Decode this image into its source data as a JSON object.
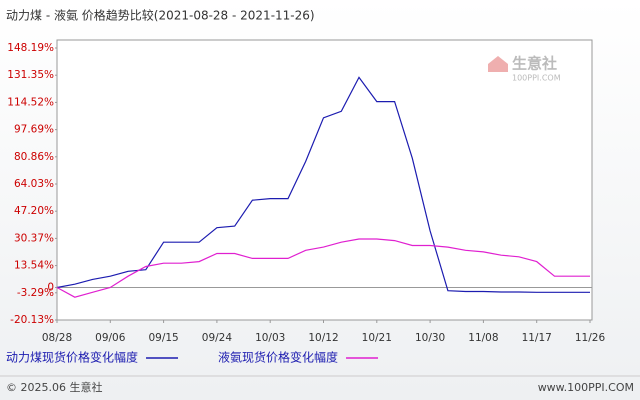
{
  "chart_data": {
    "type": "line",
    "title": "动力煤 - 液氨 价格趋势比较(2021-08-28 - 2021-11-26)",
    "categories": [
      "08/28",
      null,
      null,
      "09/06",
      null,
      null,
      "09/15",
      null,
      null,
      "09/24",
      null,
      null,
      "10/03",
      null,
      null,
      "10/12",
      null,
      null,
      "10/21",
      null,
      null,
      "10/30",
      null,
      null,
      "11/08",
      null,
      null,
      "11/17",
      null,
      null,
      "11/26"
    ],
    "series": [
      {
        "name": "动力煤现货价格变化幅度",
        "color": "#1c1cb0",
        "values": [
          0,
          2,
          5,
          7,
          10,
          11,
          28,
          28,
          28,
          37,
          38,
          54,
          55,
          55,
          78,
          105,
          109,
          130,
          115,
          115,
          80,
          35,
          -2,
          -2.5,
          -2.5,
          -2.8,
          -2.8,
          -3,
          -3,
          -3,
          -3
        ]
      },
      {
        "name": "液氨现货价格变化幅度",
        "color": "#e020d0",
        "values": [
          0,
          -6,
          -3,
          0,
          7,
          13,
          15,
          15,
          16,
          21,
          21,
          18,
          18,
          18,
          23,
          25,
          28,
          30,
          30,
          29,
          26,
          26,
          25,
          23,
          22,
          20,
          19,
          16,
          7,
          7,
          7
        ]
      }
    ],
    "ylim": [
      -20.13,
      148.19
    ],
    "yticks": [
      {
        "value": -20.13,
        "label": "-20.13%"
      },
      {
        "value": -3.29,
        "label": "-3.29%"
      },
      0,
      {
        "value": 13.54,
        "label": "13.54%"
      },
      {
        "value": 30.37,
        "label": "30.37%"
      },
      {
        "value": 47.2,
        "label": "47.20%"
      },
      {
        "value": 64.03,
        "label": "64.03%"
      },
      {
        "value": 80.86,
        "label": "80.86%"
      },
      {
        "value": 97.69,
        "label": "97.69%"
      },
      {
        "value": 114.52,
        "label": "114.52%"
      },
      {
        "value": 131.35,
        "label": "131.35%"
      },
      {
        "value": 148.19,
        "label": "148.19%"
      }
    ],
    "zero_line": true,
    "watermark": {
      "name": "生意社",
      "site": "100PPI.COM"
    },
    "footer": {
      "left": "© 2025.06 生意社",
      "right": "www.100PPI.COM"
    }
  }
}
